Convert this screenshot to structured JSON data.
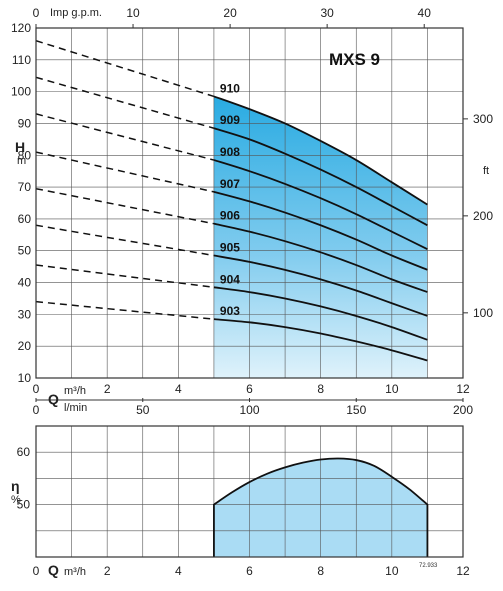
{
  "chart_data": [
    {
      "type": "line",
      "title": "MXS 9",
      "x_axis": {
        "symbol": "Q",
        "unit": "m³/h",
        "range": [
          0,
          12
        ],
        "ticks": [
          0,
          2,
          4,
          6,
          8,
          10,
          12
        ]
      },
      "top_axis": {
        "label": "Imp g.p.m.",
        "range_in_m3h": [
          0,
          12
        ],
        "ticks": [
          "0",
          "10",
          "20",
          "30",
          "40"
        ],
        "tick_values_m3h": [
          0,
          2.727,
          5.455,
          8.182,
          10.91
        ]
      },
      "second_x_axis": {
        "unit": "l/min",
        "ticks": [
          "0",
          "50",
          "100",
          "150",
          "200"
        ],
        "tick_values_m3h": [
          0,
          3,
          6,
          9,
          12
        ]
      },
      "y_axis": {
        "symbol": "H",
        "unit": "m",
        "range": [
          10,
          120
        ],
        "ticks": [
          10,
          20,
          30,
          40,
          50,
          60,
          70,
          80,
          90,
          100,
          110,
          120
        ]
      },
      "right_axis": {
        "unit": "ft",
        "ticks": [
          "100",
          "200",
          "300"
        ],
        "tick_values_m": [
          30.48,
          60.96,
          91.44
        ]
      },
      "grid": true,
      "operating_range": [
        5,
        11
      ],
      "series": [
        {
          "name": "903",
          "dashed": {
            "x": [
              0,
              5
            ],
            "y": [
              34,
              28.5
            ]
          },
          "x": [
            5,
            6,
            7,
            8,
            9,
            10,
            11
          ],
          "y": [
            28.5,
            27.5,
            26,
            24,
            21.5,
            18.7,
            15.5
          ]
        },
        {
          "name": "904",
          "dashed": {
            "x": [
              0,
              5
            ],
            "y": [
              45.5,
              38.5
            ]
          },
          "x": [
            5,
            6,
            7,
            8,
            9,
            10,
            11
          ],
          "y": [
            38.5,
            37,
            35,
            32.5,
            29.5,
            26,
            22
          ]
        },
        {
          "name": "905",
          "dashed": {
            "x": [
              0,
              5
            ],
            "y": [
              58,
              48.5
            ]
          },
          "x": [
            5,
            6,
            7,
            8,
            9,
            10,
            11
          ],
          "y": [
            48.5,
            46.5,
            44,
            41,
            37.5,
            33.5,
            29.5
          ]
        },
        {
          "name": "906",
          "dashed": {
            "x": [
              0,
              5
            ],
            "y": [
              69.5,
              58.5
            ]
          },
          "x": [
            5,
            6,
            7,
            8,
            9,
            10,
            11
          ],
          "y": [
            58.5,
            56,
            53,
            49.5,
            45.5,
            41,
            37
          ]
        },
        {
          "name": "907",
          "dashed": {
            "x": [
              0,
              5
            ],
            "y": [
              81,
              68.5
            ]
          },
          "x": [
            5,
            6,
            7,
            8,
            9,
            10,
            11
          ],
          "y": [
            68.5,
            65.5,
            62,
            58,
            53.5,
            48.5,
            44
          ]
        },
        {
          "name": "908",
          "dashed": {
            "x": [
              0,
              5
            ],
            "y": [
              93,
              78.5
            ]
          },
          "x": [
            5,
            6,
            7,
            8,
            9,
            10,
            11
          ],
          "y": [
            78.5,
            75,
            71,
            66.5,
            61.5,
            56,
            50.5
          ]
        },
        {
          "name": "909",
          "dashed": {
            "x": [
              0,
              5
            ],
            "y": [
              104.5,
              88.5
            ]
          },
          "x": [
            5,
            6,
            7,
            8,
            9,
            10,
            11
          ],
          "y": [
            88.5,
            85,
            80.5,
            75.5,
            70,
            64,
            58
          ]
        },
        {
          "name": "910",
          "dashed": {
            "x": [
              0,
              5
            ],
            "y": [
              116,
              98.5
            ]
          },
          "x": [
            5,
            6,
            7,
            8,
            9,
            10,
            11
          ],
          "y": [
            98.5,
            94.5,
            90,
            84.5,
            78.5,
            71.5,
            64.5
          ]
        }
      ]
    },
    {
      "type": "area",
      "x_axis": {
        "symbol": "Q",
        "unit": "m³/h",
        "range": [
          0,
          12
        ],
        "ticks": [
          0,
          2,
          4,
          6,
          8,
          10,
          12
        ]
      },
      "y_axis": {
        "symbol": "η",
        "unit": "%",
        "range": [
          40,
          65
        ],
        "ticks": [
          50,
          60
        ]
      },
      "grid": true,
      "series": [
        {
          "name": "efficiency",
          "x": [
            5,
            5.5,
            6,
            6.5,
            7,
            7.5,
            8,
            8.5,
            9,
            9.5,
            10,
            10.5,
            11
          ],
          "y": [
            50,
            52.3,
            54.3,
            55.9,
            57.1,
            58,
            58.6,
            58.8,
            58.5,
            57.4,
            55.3,
            52.9,
            50
          ]
        }
      ]
    }
  ],
  "figure_code": "72.933"
}
